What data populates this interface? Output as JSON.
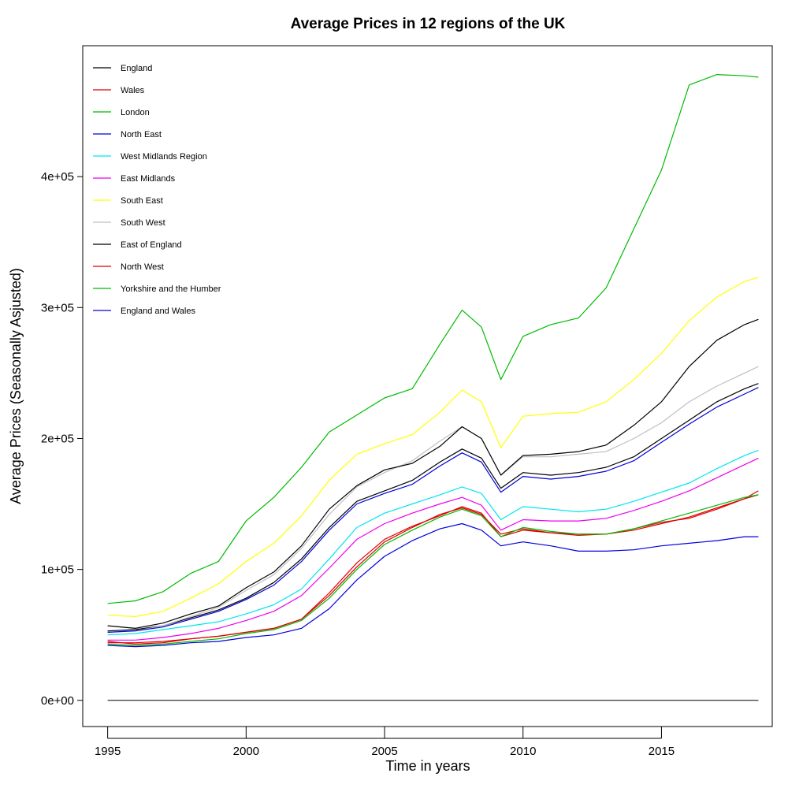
{
  "chart_data": {
    "type": "line",
    "title": "Average Prices in 12 regions of the UK",
    "xlabel": "Time in years",
    "ylabel": "Average Prices (Seasonally Asjusted)",
    "xlim": [
      1994.1,
      2019.0
    ],
    "ylim": [
      -20000,
      500000
    ],
    "x_ticks": [
      1995,
      2000,
      2005,
      2010,
      2015
    ],
    "x_tick_labels": [
      "1995",
      "2000",
      "2005",
      "2010",
      "2015"
    ],
    "y_ticks": [
      0,
      100000,
      200000,
      300000,
      400000
    ],
    "y_tick_labels": [
      "0e+00",
      "1e+05",
      "2e+05",
      "3e+05",
      "4e+05"
    ],
    "grid": false,
    "legend_position": "top-left",
    "zero_line": {
      "x": [
        1995.0,
        2018.5
      ],
      "y": [
        0,
        0
      ],
      "color": "#000000"
    },
    "series": [
      {
        "name": "England",
        "color": "#000000",
        "x": [
          1995.0,
          1996.0,
          1997.0,
          1998.0,
          1999.0,
          2000.0,
          2001.0,
          2002.0,
          2003.0,
          2004.0,
          2005.0,
          2006.0,
          2007.0,
          2007.8,
          2008.5,
          2009.2,
          2010.0,
          2011.0,
          2012.0,
          2013.0,
          2014.0,
          2015.0,
          2016.0,
          2017.0,
          2018.0,
          2018.5
        ],
        "y": [
          53000,
          54000,
          57000,
          63000,
          69000,
          78000,
          90000,
          108000,
          132000,
          152000,
          160000,
          168000,
          182000,
          192000,
          185000,
          162000,
          174000,
          172000,
          174000,
          178000,
          186000,
          200000,
          214000,
          228000,
          238000,
          242000
        ]
      },
      {
        "name": "Wales",
        "color": "#dd0000",
        "x": [
          1995.0,
          1996.0,
          1997.0,
          1998.0,
          1999.0,
          2000.0,
          2001.0,
          2002.0,
          2003.0,
          2004.0,
          2005.0,
          2006.0,
          2007.0,
          2007.8,
          2008.5,
          2009.2,
          2010.0,
          2011.0,
          2012.0,
          2013.0,
          2014.0,
          2015.0,
          2016.0,
          2017.0,
          2018.0,
          2018.5
        ],
        "y": [
          45000,
          43000,
          44000,
          47000,
          49000,
          52000,
          55000,
          62000,
          82000,
          105000,
          123000,
          133000,
          141000,
          148000,
          143000,
          125000,
          130000,
          128000,
          127000,
          127000,
          131000,
          136000,
          139000,
          146000,
          154000,
          160000
        ]
      },
      {
        "name": "London",
        "color": "#00bb00",
        "x": [
          1995.0,
          1996.0,
          1997.0,
          1998.0,
          1999.0,
          2000.0,
          2001.0,
          2002.0,
          2003.0,
          2004.0,
          2005.0,
          2006.0,
          2007.0,
          2007.8,
          2008.5,
          2009.2,
          2010.0,
          2011.0,
          2012.0,
          2013.0,
          2014.0,
          2015.0,
          2016.0,
          2017.0,
          2018.0,
          2018.5
        ],
        "y": [
          74000,
          76000,
          83000,
          97000,
          106000,
          137000,
          155000,
          178000,
          205000,
          218000,
          231000,
          238000,
          272000,
          298000,
          285000,
          245000,
          278000,
          287000,
          292000,
          315000,
          360000,
          405000,
          470000,
          478000,
          477000,
          476000
        ]
      },
      {
        "name": "North East",
        "color": "#0000dd",
        "x": [
          1995.0,
          1996.0,
          1997.0,
          1998.0,
          1999.0,
          2000.0,
          2001.0,
          2002.0,
          2003.0,
          2004.0,
          2005.0,
          2006.0,
          2007.0,
          2007.8,
          2008.5,
          2009.2,
          2010.0,
          2011.0,
          2012.0,
          2013.0,
          2014.0,
          2015.0,
          2016.0,
          2017.0,
          2018.0,
          2018.5
        ],
        "y": [
          42000,
          41000,
          42000,
          44000,
          45000,
          48000,
          50000,
          55000,
          70000,
          92000,
          110000,
          122000,
          131000,
          135000,
          130000,
          118000,
          121000,
          118000,
          114000,
          114000,
          115000,
          118000,
          120000,
          122000,
          125000,
          125000
        ]
      },
      {
        "name": "West Midlands Region",
        "color": "#00e5ee",
        "x": [
          1995.0,
          1996.0,
          1997.0,
          1998.0,
          1999.0,
          2000.0,
          2001.0,
          2002.0,
          2003.0,
          2004.0,
          2005.0,
          2006.0,
          2007.0,
          2007.8,
          2008.5,
          2009.2,
          2010.0,
          2011.0,
          2012.0,
          2013.0,
          2014.0,
          2015.0,
          2016.0,
          2017.0,
          2018.0,
          2018.5
        ],
        "y": [
          50000,
          51000,
          54000,
          57000,
          60000,
          66000,
          73000,
          85000,
          108000,
          132000,
          143000,
          150000,
          157000,
          163000,
          158000,
          138000,
          148000,
          146000,
          144000,
          146000,
          152000,
          159000,
          166000,
          177000,
          187000,
          191000
        ]
      },
      {
        "name": "East Midlands",
        "color": "#ee00ee",
        "x": [
          1995.0,
          1996.0,
          1997.0,
          1998.0,
          1999.0,
          2000.0,
          2001.0,
          2002.0,
          2003.0,
          2004.0,
          2005.0,
          2006.0,
          2007.0,
          2007.8,
          2008.5,
          2009.2,
          2010.0,
          2011.0,
          2012.0,
          2013.0,
          2014.0,
          2015.0,
          2016.0,
          2017.0,
          2018.0,
          2018.5
        ],
        "y": [
          46000,
          46000,
          48000,
          51000,
          55000,
          61000,
          68000,
          80000,
          101000,
          123000,
          135000,
          143000,
          150000,
          155000,
          149000,
          130000,
          138000,
          137000,
          137000,
          139000,
          145000,
          152000,
          160000,
          170000,
          180000,
          185000
        ]
      },
      {
        "name": "South East",
        "color": "#ffff00",
        "x": [
          1995.0,
          1996.0,
          1997.0,
          1998.0,
          1999.0,
          2000.0,
          2001.0,
          2002.0,
          2003.0,
          2004.0,
          2005.0,
          2006.0,
          2007.0,
          2007.8,
          2008.5,
          2009.2,
          2010.0,
          2011.0,
          2012.0,
          2013.0,
          2014.0,
          2015.0,
          2016.0,
          2017.0,
          2018.0,
          2018.5
        ],
        "y": [
          65000,
          64000,
          68000,
          78000,
          89000,
          106000,
          120000,
          141000,
          168000,
          188000,
          196000,
          203000,
          220000,
          237000,
          228000,
          193000,
          217000,
          219000,
          220000,
          228000,
          245000,
          265000,
          290000,
          308000,
          320000,
          323000
        ]
      },
      {
        "name": "South West",
        "color": "#c0c0c0",
        "x": [
          1995.0,
          1996.0,
          1997.0,
          1998.0,
          1999.0,
          2000.0,
          2001.0,
          2002.0,
          2003.0,
          2004.0,
          2005.0,
          2006.0,
          2007.0,
          2007.8,
          2008.5,
          2009.2,
          2010.0,
          2011.0,
          2012.0,
          2013.0,
          2014.0,
          2015.0,
          2016.0,
          2017.0,
          2018.0,
          2018.5
        ],
        "y": [
          52000,
          53000,
          57000,
          64000,
          71000,
          84000,
          96000,
          116000,
          142000,
          163000,
          174000,
          183000,
          198000,
          209000,
          200000,
          172000,
          186000,
          186000,
          188000,
          190000,
          200000,
          212000,
          228000,
          240000,
          250000,
          255000
        ]
      },
      {
        "name": "East of England",
        "color": "#000000",
        "x": [
          1995.0,
          1996.0,
          1997.0,
          1998.0,
          1999.0,
          2000.0,
          2001.0,
          2002.0,
          2003.0,
          2004.0,
          2005.0,
          2006.0,
          2007.0,
          2007.8,
          2008.5,
          2009.2,
          2010.0,
          2011.0,
          2012.0,
          2013.0,
          2014.0,
          2015.0,
          2016.0,
          2017.0,
          2018.0,
          2018.5
        ],
        "y": [
          57000,
          55000,
          59000,
          66000,
          72000,
          86000,
          98000,
          118000,
          146000,
          164000,
          176000,
          181000,
          194000,
          209000,
          200000,
          172000,
          187000,
          188000,
          190000,
          195000,
          210000,
          228000,
          255000,
          275000,
          287000,
          291000
        ]
      },
      {
        "name": "North West",
        "color": "#dd0000",
        "x": [
          1995.0,
          1996.0,
          1997.0,
          1998.0,
          1999.0,
          2000.0,
          2001.0,
          2002.0,
          2003.0,
          2004.0,
          2005.0,
          2006.0,
          2007.0,
          2007.8,
          2008.5,
          2009.2,
          2010.0,
          2011.0,
          2012.0,
          2013.0,
          2014.0,
          2015.0,
          2016.0,
          2017.0,
          2018.0,
          2018.5
        ],
        "y": [
          44000,
          44000,
          45000,
          47000,
          49000,
          52000,
          55000,
          62000,
          80000,
          102000,
          121000,
          132000,
          142000,
          147000,
          142000,
          127000,
          131000,
          128000,
          126000,
          127000,
          130000,
          135000,
          140000,
          147000,
          154000,
          157000
        ]
      },
      {
        "name": "Yorkshire and the Humber",
        "color": "#00bb00",
        "x": [
          1995.0,
          1996.0,
          1997.0,
          1998.0,
          1999.0,
          2000.0,
          2001.0,
          2002.0,
          2003.0,
          2004.0,
          2005.0,
          2006.0,
          2007.0,
          2007.8,
          2008.5,
          2009.2,
          2010.0,
          2011.0,
          2012.0,
          2013.0,
          2014.0,
          2015.0,
          2016.0,
          2017.0,
          2018.0,
          2018.5
        ],
        "y": [
          43000,
          42000,
          43000,
          45000,
          47000,
          51000,
          54000,
          61000,
          78000,
          100000,
          119000,
          130000,
          140000,
          146000,
          141000,
          125000,
          132000,
          129000,
          127000,
          127000,
          131000,
          137000,
          143000,
          149000,
          155000,
          157000
        ]
      },
      {
        "name": "England and Wales",
        "color": "#0000dd",
        "x": [
          1995.0,
          1996.0,
          1997.0,
          1998.0,
          1999.0,
          2000.0,
          2001.0,
          2002.0,
          2003.0,
          2004.0,
          2005.0,
          2006.0,
          2007.0,
          2007.8,
          2008.5,
          2009.2,
          2010.0,
          2011.0,
          2012.0,
          2013.0,
          2014.0,
          2015.0,
          2016.0,
          2017.0,
          2018.0,
          2018.5
        ],
        "y": [
          52000,
          53000,
          56000,
          62000,
          68000,
          77000,
          88000,
          106000,
          130000,
          150000,
          158000,
          165000,
          179000,
          189000,
          182000,
          159000,
          171000,
          169000,
          171000,
          175000,
          183000,
          197000,
          211000,
          224000,
          234000,
          239000
        ]
      }
    ]
  }
}
